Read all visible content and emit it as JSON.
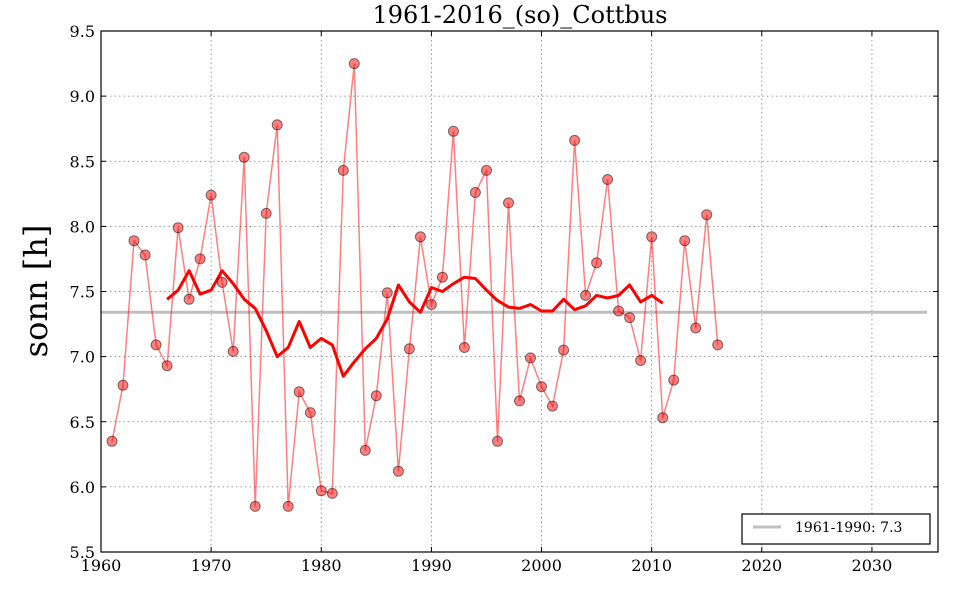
{
  "chart_data": {
    "type": "line",
    "title": "1961-2016_(so)_Cottbus",
    "xlabel": "",
    "ylabel": "sonn [h]",
    "xlim": [
      1960,
      2036
    ],
    "ylim": [
      5.5,
      9.5
    ],
    "x_ticks": [
      1960,
      1970,
      1980,
      1990,
      2000,
      2010,
      2020,
      2030
    ],
    "y_ticks": [
      "5.5",
      "6.0",
      "6.5",
      "7.0",
      "7.5",
      "8.0",
      "8.5",
      "9.0",
      "9.5"
    ],
    "grid": true,
    "legend_position": "bottom-right",
    "series": [
      {
        "style": "line-markers",
        "color": "#ff0000",
        "x": [
          1961,
          1962,
          1963,
          1964,
          1965,
          1966,
          1967,
          1968,
          1969,
          1970,
          1971,
          1972,
          1973,
          1974,
          1975,
          1976,
          1977,
          1978,
          1979,
          1980,
          1981,
          1982,
          1983,
          1984,
          1985,
          1986,
          1987,
          1988,
          1989,
          1990,
          1991,
          1992,
          1993,
          1994,
          1995,
          1996,
          1997,
          1998,
          1999,
          2000,
          2001,
          2002,
          2003,
          2004,
          2005,
          2006,
          2007,
          2008,
          2009,
          2010,
          2011,
          2012,
          2013,
          2014,
          2015,
          2016
        ],
        "y": [
          6.35,
          6.78,
          7.89,
          7.78,
          7.09,
          6.93,
          7.99,
          7.44,
          7.75,
          8.24,
          7.57,
          7.04,
          8.53,
          5.85,
          8.1,
          8.78,
          5.85,
          6.73,
          6.57,
          5.97,
          5.95,
          8.43,
          9.25,
          6.28,
          6.7,
          7.49,
          6.12,
          7.06,
          7.92,
          7.4,
          7.61,
          8.73,
          7.07,
          8.26,
          8.43,
          6.35,
          8.18,
          6.66,
          6.99,
          6.77,
          6.62,
          7.05,
          8.66,
          7.47,
          7.72,
          8.36,
          7.35,
          7.3,
          6.97,
          7.92,
          6.53,
          6.82,
          7.89,
          7.22,
          8.09,
          7.09
        ]
      },
      {
        "style": "line",
        "color": "#ff0000",
        "x": [
          1966,
          1967,
          1968,
          1969,
          1970,
          1971,
          1972,
          1973,
          1974,
          1975,
          1976,
          1977,
          1978,
          1979,
          1980,
          1981,
          1982,
          1983,
          1984,
          1985,
          1986,
          1987,
          1988,
          1989,
          1990,
          1991,
          1992,
          1993,
          1994,
          1995,
          1996,
          1997,
          1998,
          1999,
          2000,
          2001,
          2002,
          2003,
          2004,
          2005,
          2006,
          2007,
          2008,
          2009,
          2010,
          2011
        ],
        "y": [
          7.44,
          7.51,
          7.66,
          7.48,
          7.51,
          7.66,
          7.56,
          7.44,
          7.37,
          7.2,
          7.0,
          7.07,
          7.27,
          7.07,
          7.14,
          7.09,
          6.85,
          6.96,
          7.06,
          7.14,
          7.29,
          7.55,
          7.42,
          7.34,
          7.53,
          7.5,
          7.56,
          7.61,
          7.6,
          7.51,
          7.43,
          7.38,
          7.37,
          7.4,
          7.35,
          7.35,
          7.44,
          7.36,
          7.39,
          7.47,
          7.45,
          7.47,
          7.55,
          7.42,
          7.47,
          7.41
        ]
      },
      {
        "name": "1961-1990: 7.3",
        "style": "hline",
        "color": "#bfbfbf",
        "x": [
          1960,
          2035
        ],
        "y": [
          7.34,
          7.34
        ]
      }
    ]
  }
}
